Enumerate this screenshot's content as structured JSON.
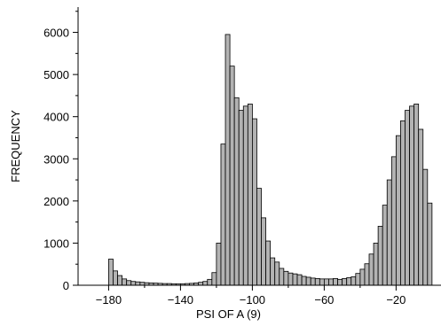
{
  "chart_data": {
    "type": "bar",
    "xlabel": "PSI OF A (9)",
    "ylabel": "FREQUENCY",
    "xlim": [
      -197,
      5
    ],
    "ylim": [
      0,
      6600
    ],
    "x_ticks": [
      -180,
      -140,
      -100,
      -60,
      -20
    ],
    "x_tick_labels": [
      "−180",
      "−140",
      "−100",
      "−60",
      "−20"
    ],
    "y_ticks": [
      0,
      1000,
      2000,
      3000,
      4000,
      5000,
      6000
    ],
    "y_tick_labels": [
      "0",
      "1000",
      "2000",
      "3000",
      "4000",
      "5000",
      "6000"
    ],
    "bin_width": 2.5,
    "bin_starts": [
      -180,
      -177.5,
      -175,
      -172.5,
      -170,
      -167.5,
      -165,
      -162.5,
      -160,
      -157.5,
      -155,
      -152.5,
      -150,
      -147.5,
      -145,
      -142.5,
      -140,
      -137.5,
      -135,
      -132.5,
      -130,
      -127.5,
      -125,
      -122.5,
      -120,
      -117.5,
      -115,
      -112.5,
      -110,
      -107.5,
      -105,
      -102.5,
      -100,
      -97.5,
      -95,
      -92.5,
      -90,
      -87.5,
      -85,
      -82.5,
      -80,
      -77.5,
      -75,
      -72.5,
      -70,
      -67.5,
      -65,
      -62.5,
      -60,
      -57.5,
      -55,
      -52.5,
      -50,
      -47.5,
      -45,
      -42.5,
      -40,
      -37.5,
      -35,
      -32.5,
      -30,
      -27.5,
      -25,
      -22.5,
      -20,
      -17.5,
      -15,
      -12.5,
      -10,
      -7.5,
      -5,
      -2.5
    ],
    "values": [
      620,
      340,
      230,
      150,
      110,
      90,
      80,
      70,
      60,
      55,
      50,
      45,
      40,
      40,
      35,
      35,
      35,
      40,
      45,
      55,
      70,
      90,
      140,
      300,
      1000,
      3350,
      5950,
      5200,
      4450,
      4150,
      4250,
      4300,
      3950,
      2300,
      1600,
      1050,
      650,
      550,
      400,
      330,
      290,
      270,
      250,
      210,
      190,
      170,
      160,
      150,
      150,
      150,
      160,
      140,
      160,
      180,
      200,
      280,
      380,
      510,
      740,
      1000,
      1400,
      1900,
      2500,
      3050,
      3550,
      3900,
      4150,
      4250,
      4300,
      3700,
      2750,
      1950
    ],
    "bar_color": "#b3b3b3",
    "edge_color": "#000000",
    "grid": false,
    "legend": false
  }
}
